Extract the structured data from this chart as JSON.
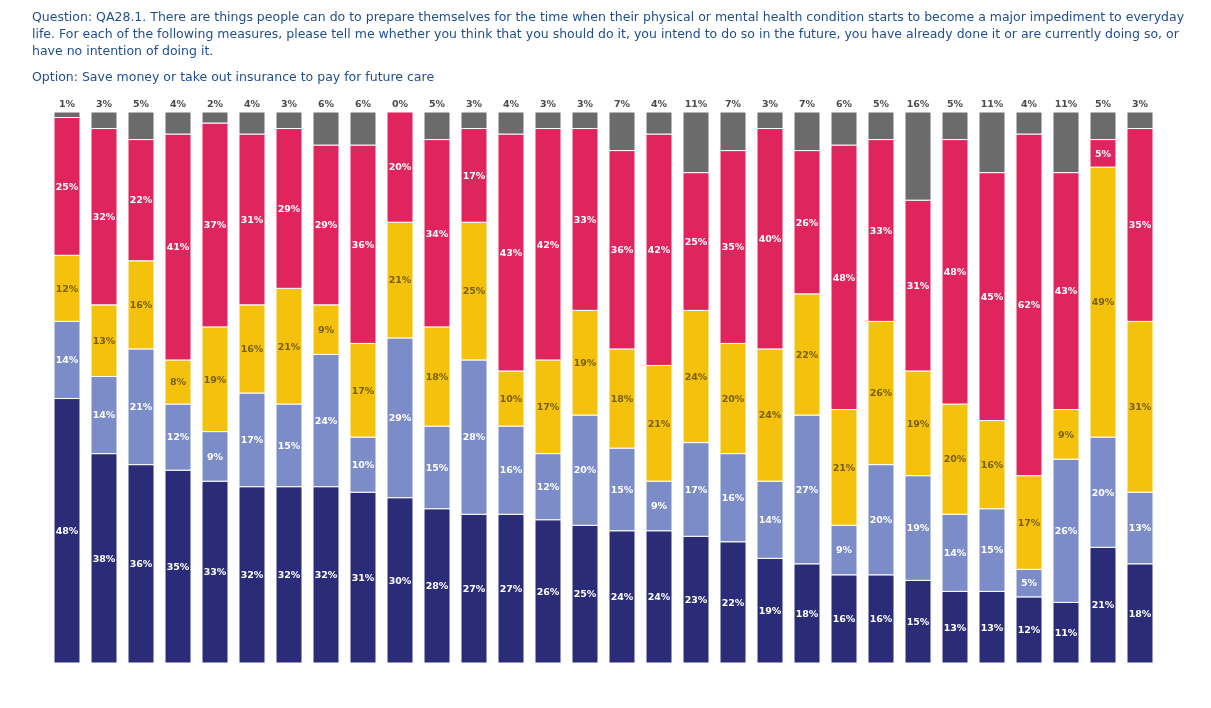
{
  "chart_data": {
    "type": "bar",
    "stacked": true,
    "title": "Question: QA28.1. There are things people can do to prepare themselves for the time when their physical or mental health condition starts to become a major impediment to everyday life. For each of the following measures, please tell me whether you think that you should do it, you intend to do so in the future, you have already done it or are currently doing so, or have no intention of doing it.",
    "subtitle": "Option: Save money or take out insurance to pay for future care",
    "tick_labels": false,
    "grid": false,
    "legend": false,
    "categories": [
      null,
      null,
      null,
      null,
      null,
      null,
      null,
      null,
      null,
      null,
      null,
      null,
      null,
      null,
      null,
      null,
      null,
      null,
      null,
      null,
      null,
      null,
      null,
      null,
      null,
      null,
      null,
      null,
      null,
      null
    ],
    "series": [
      {
        "color": "#2b2c78",
        "values": [
          48,
          38,
          36,
          35,
          33,
          32,
          32,
          32,
          31,
          30,
          28,
          27,
          27,
          26,
          25,
          24,
          24,
          23,
          22,
          19,
          18,
          16,
          16,
          15,
          13,
          13,
          12,
          11,
          21,
          18
        ],
        "value_labels": [
          "48%",
          "38%",
          "36%",
          "35%",
          "33%",
          "32%",
          "32%",
          "32%",
          "31%",
          "30%",
          "28%",
          "27%",
          "27%",
          "26%",
          "25%",
          "24%",
          "24%",
          "23%",
          "22%",
          "19%",
          "18%",
          "16%",
          "16%",
          "15%",
          "13%",
          "13%",
          "12%",
          "11%",
          "21%",
          "18%"
        ]
      },
      {
        "color": "#7b8cc8",
        "values": [
          14,
          14,
          21,
          12,
          9,
          17,
          15,
          24,
          10,
          29,
          15,
          28,
          16,
          12,
          20,
          15,
          9,
          17,
          16,
          14,
          27,
          9,
          20,
          19,
          14,
          15,
          5,
          26,
          20,
          13
        ],
        "value_labels": [
          "14%",
          "14%",
          "21%",
          "12%",
          "9%",
          "17%",
          "15%",
          "24%",
          "10%",
          "29%",
          "15%",
          "28%",
          "16%",
          "12%",
          "20%",
          "15%",
          "9%",
          "17%",
          "16%",
          "14%",
          "27%",
          "9%",
          "20%",
          "19%",
          "14%",
          "15%",
          "5%",
          "26%",
          "20%",
          "13%"
        ]
      },
      {
        "color": "#f4c20d",
        "values": [
          12,
          13,
          16,
          8,
          19,
          16,
          21,
          9,
          17,
          21,
          18,
          25,
          10,
          17,
          19,
          18,
          21,
          24,
          20,
          24,
          22,
          21,
          26,
          19,
          20,
          16,
          17,
          9,
          49,
          31
        ],
        "value_labels": [
          "12%",
          "13%",
          "16%",
          "8%",
          "19%",
          "16%",
          "21%",
          "9%",
          "17%",
          "21%",
          "18%",
          "25%",
          "10%",
          "17%",
          "19%",
          "18%",
          "21%",
          "24%",
          "20%",
          "24%",
          "22%",
          "21%",
          "26%",
          "19%",
          "20%",
          "16%",
          "17%",
          "9%",
          "49%",
          "31%"
        ]
      },
      {
        "color": "#e0245e",
        "values": [
          25,
          32,
          22,
          41,
          37,
          31,
          29,
          29,
          36,
          20,
          34,
          17,
          43,
          42,
          33,
          36,
          42,
          25,
          35,
          40,
          26,
          48,
          33,
          31,
          48,
          45,
          62,
          43,
          5,
          35
        ],
        "value_labels": [
          "25%",
          "32%",
          "22%",
          "41%",
          "37%",
          "31%",
          "29%",
          "29%",
          "36%",
          "20%",
          "34%",
          "17%",
          "43%",
          "42%",
          "33%",
          "36%",
          "42%",
          "25%",
          "35%",
          "40%",
          "26%",
          "48%",
          "33%",
          "31%",
          "48%",
          "45%",
          "62%",
          "43%",
          "5%",
          "35%"
        ]
      },
      {
        "color": "#6b6b6b",
        "values": [
          1,
          3,
          5,
          4,
          2,
          4,
          3,
          6,
          6,
          0,
          5,
          3,
          4,
          3,
          3,
          7,
          4,
          11,
          7,
          3,
          7,
          6,
          5,
          16,
          5,
          11,
          4,
          11,
          5,
          3
        ],
        "value_labels": [
          "1%",
          "3%",
          "5%",
          "4%",
          "2%",
          "4%",
          "3%",
          "6%",
          "6%",
          "0%",
          "5%",
          "3%",
          "4%",
          "3%",
          "3%",
          "7%",
          "4%",
          "11%",
          "7%",
          "3%",
          "7%",
          "6%",
          "5%",
          "16%",
          "5%",
          "11%",
          "4%",
          "11%",
          "5%",
          "3%"
        ]
      }
    ]
  }
}
